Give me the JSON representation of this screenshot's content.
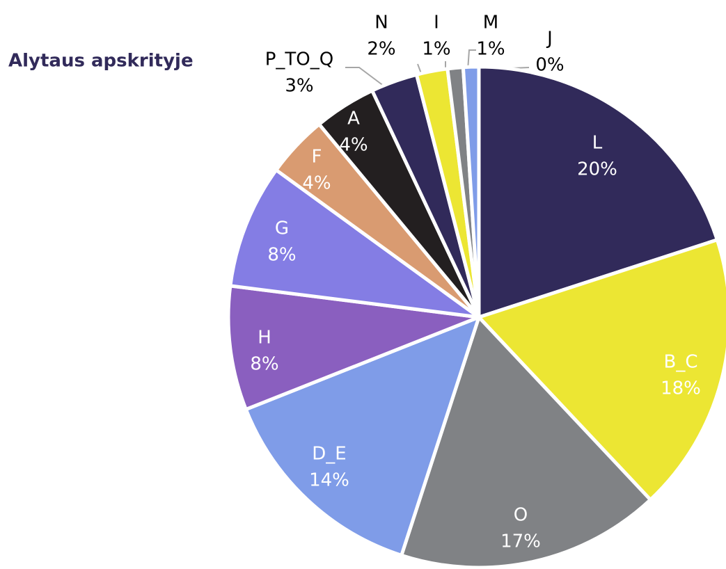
{
  "chart_data": {
    "type": "pie",
    "subtitle": "Alytaus apskrityje",
    "categories": [
      "L",
      "B_C",
      "O",
      "D_E",
      "H",
      "G",
      "F",
      "A",
      "P_TO_Q",
      "N",
      "I",
      "M",
      "J"
    ],
    "values": [
      20,
      18,
      17,
      14,
      8,
      8,
      4,
      4,
      3,
      2,
      1,
      1,
      0
    ],
    "value_labels": [
      "20%",
      "18%",
      "17%",
      "14%",
      "8%",
      "8%",
      "4%",
      "4%",
      "3%",
      "2%",
      "1%",
      "1%",
      "0%"
    ],
    "colors": [
      "#312a5a",
      "#ece633",
      "#808285",
      "#7f9ce8",
      "#8a5fbf",
      "#847de4",
      "#d99b71",
      "#231f20",
      "#312a5a",
      "#ece633",
      "#808285",
      "#7f9ce8",
      "#8a5fbf"
    ]
  }
}
